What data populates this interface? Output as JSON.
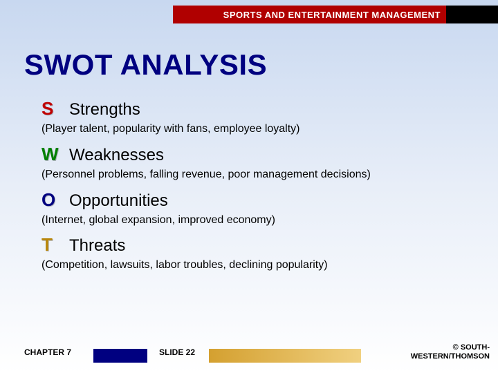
{
  "header": {
    "course_title": "SPORTS AND ENTERTAINMENT MANAGEMENT",
    "colors": {
      "red": "#b00000",
      "black": "#000000"
    }
  },
  "slide": {
    "title": "SWOT ANALYSIS",
    "title_color": "#000080"
  },
  "swot": {
    "items": [
      {
        "letter": "S",
        "letter_color": "#c00000",
        "label": "Strengths",
        "desc": "(Player talent, popularity with fans, employee loyalty)"
      },
      {
        "letter": "W",
        "letter_color": "#008000",
        "label": "Weaknesses",
        "desc": "(Personnel problems, falling revenue, poor management decisions)"
      },
      {
        "letter": "O",
        "letter_color": "#000080",
        "label": "Opportunities",
        "desc": "(Internet, global expansion, improved economy)"
      },
      {
        "letter": "T",
        "letter_color": "#b8860b",
        "label": "Threats",
        "desc": "(Competition, lawsuits, labor troubles, declining popularity)"
      }
    ]
  },
  "footer": {
    "chapter": "CHAPTER 7",
    "slide_label": "SLIDE 22",
    "copyright_line1": "© SOUTH-",
    "copyright_line2": "WESTERN/THOMSON",
    "colors": {
      "navy": "#000080",
      "gold_start": "#d4a030",
      "gold_end": "#f0d080"
    }
  },
  "background": {
    "gradient_top": "#c8d8f0",
    "gradient_mid": "#e8eef8",
    "gradient_bottom": "#ffffff"
  }
}
